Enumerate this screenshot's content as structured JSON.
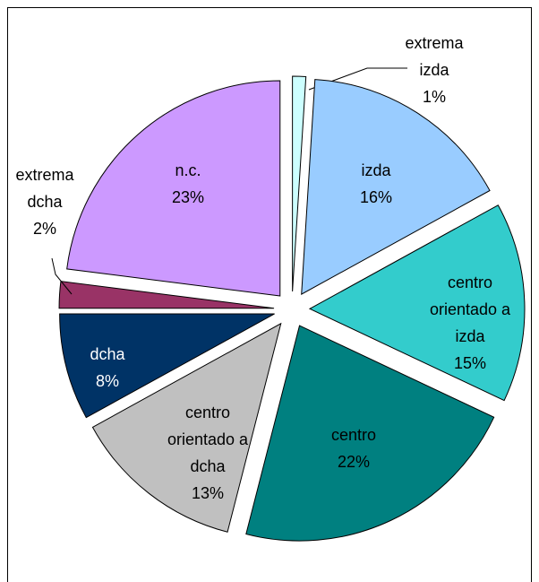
{
  "chart_data": {
    "type": "pie",
    "categories": [
      "extrema izda",
      "izda",
      "centro orientado a izda",
      "centro",
      "centro orientado a dcha",
      "dcha",
      "extrema dcha",
      "n.c."
    ],
    "values": [
      1,
      16,
      15,
      22,
      13,
      8,
      2,
      23
    ],
    "value_labels": [
      "1%",
      "16%",
      "15%",
      "22%",
      "13%",
      "8%",
      "2%",
      "23%"
    ],
    "colors": [
      "#ccffff",
      "#99ccff",
      "#33cccc",
      "#008080",
      "#c0c0c0",
      "#003366",
      "#993366",
      "#cc99ff"
    ]
  }
}
